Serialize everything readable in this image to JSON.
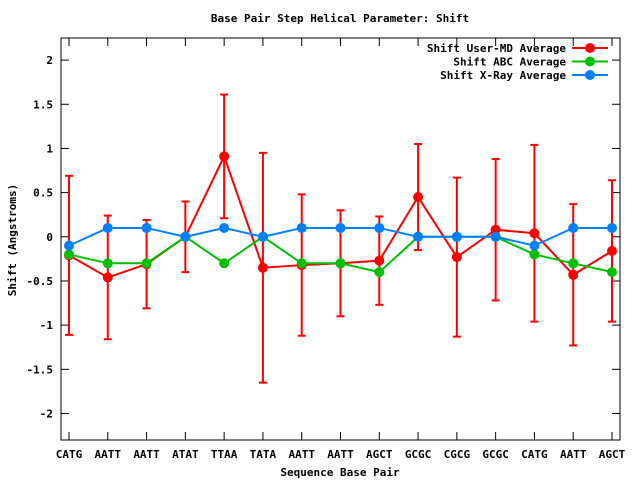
{
  "chart_data": {
    "type": "line",
    "title": "Base Pair Step Helical Parameter: Shift",
    "xlabel": "Sequence Base Pair",
    "ylabel": "Shift (Angstroms)",
    "ylim": [
      -2.3,
      2.25
    ],
    "yticks": [
      -2,
      -1.5,
      -1,
      -0.5,
      0,
      0.5,
      1,
      1.5,
      2
    ],
    "ytick_labels": [
      "-2",
      "-1.5",
      "-1",
      "-0.5",
      "0",
      "0.5",
      "1",
      "1.5",
      "2"
    ],
    "categories": [
      "CATG",
      "AATT",
      "AATT",
      "ATAT",
      "TTAA",
      "TATA",
      "AATT",
      "AATT",
      "AGCT",
      "GCGC",
      "CGCG",
      "GCGC",
      "CATG",
      "AATT",
      "AGCT"
    ],
    "grid": false,
    "legend_position": "top-right",
    "series": [
      {
        "name": "Shift User-MD Average",
        "color": "#ff0000",
        "values": [
          -0.21,
          -0.46,
          -0.31,
          0.0,
          0.91,
          -0.35,
          -0.32,
          -0.3,
          -0.27,
          0.45,
          -0.23,
          0.08,
          0.04,
          -0.43,
          -0.16
        ],
        "error": [
          0.9,
          0.7,
          0.5,
          0.4,
          0.7,
          1.3,
          0.8,
          0.6,
          0.5,
          0.6,
          0.9,
          0.8,
          1.0,
          0.8,
          0.8
        ]
      },
      {
        "name": "Shift ABC Average",
        "color": "#00c000",
        "values": [
          -0.2,
          -0.3,
          -0.3,
          0.0,
          -0.3,
          0.0,
          -0.3,
          -0.3,
          -0.4,
          0.0,
          0.0,
          0.0,
          -0.2,
          -0.3,
          -0.4
        ]
      },
      {
        "name": "Shift X-Ray Average",
        "color": "#0080ff",
        "values": [
          -0.1,
          0.1,
          0.1,
          0.0,
          0.1,
          0.0,
          0.1,
          0.1,
          0.1,
          0.0,
          0.0,
          0.0,
          -0.1,
          0.1,
          0.1
        ]
      }
    ]
  }
}
